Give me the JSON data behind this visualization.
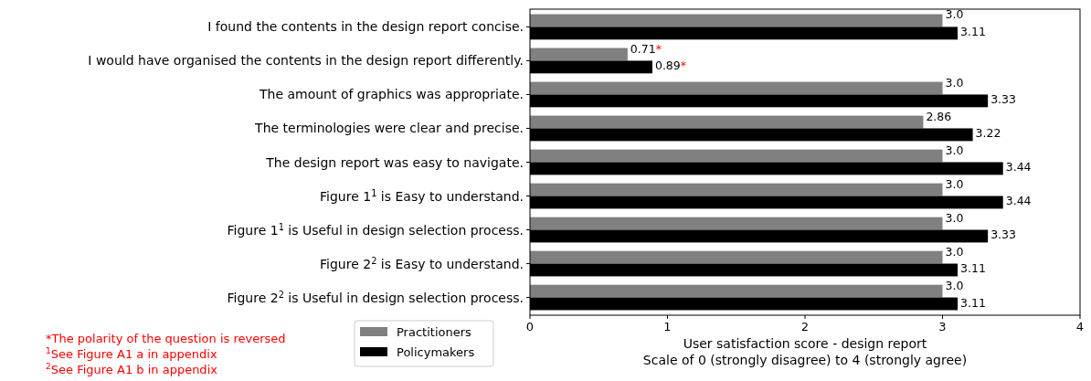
{
  "chart_data": {
    "type": "bar",
    "orientation": "horizontal",
    "categories": [
      "I found the contents in the design report concise.",
      "I would have organised the contents in the design report differently.",
      "The amount of graphics was appropriate.",
      "The terminologies were clear and precise.",
      "The design report was easy to navigate.",
      "Figure 1$^{1}$ is Easy to understand.",
      "Figure 1$^{1}$ is Useful in design selection process.",
      "Figure 2$^{2}$ is Easy to understand.",
      "Figure 2$^{2}$ is Useful in design selection process."
    ],
    "series": [
      {
        "name": "Practitioners",
        "color": "#808080",
        "values": [
          3.0,
          0.71,
          3.0,
          2.86,
          3.0,
          3.0,
          3.0,
          3.0,
          3.0
        ],
        "value_labels": [
          "3.0",
          "0.71*",
          "3.0",
          "2.86",
          "3.0",
          "3.0",
          "3.0",
          "3.0",
          "3.0"
        ]
      },
      {
        "name": "Policymakers",
        "color": "#000000",
        "values": [
          3.11,
          0.89,
          3.33,
          3.22,
          3.44,
          3.44,
          3.33,
          3.11,
          3.11
        ],
        "value_labels": [
          "3.11",
          "0.89*",
          "3.33",
          "3.22",
          "3.44",
          "3.44",
          "3.33",
          "3.11",
          "3.11"
        ]
      }
    ],
    "xlim": [
      0,
      4
    ],
    "xticks": [
      0,
      1,
      2,
      3,
      4
    ],
    "xlabel": "User satisfaction score - design report\nScale of 0 (strongly disagree) to 4 (strongly agree)",
    "legend": "bottom left",
    "annotations": [
      "*The polarity of the question is reversed",
      "$^{1}$See Figure A1 a in appendix",
      "$^{2}$See Figure A1 b in appendix"
    ]
  }
}
